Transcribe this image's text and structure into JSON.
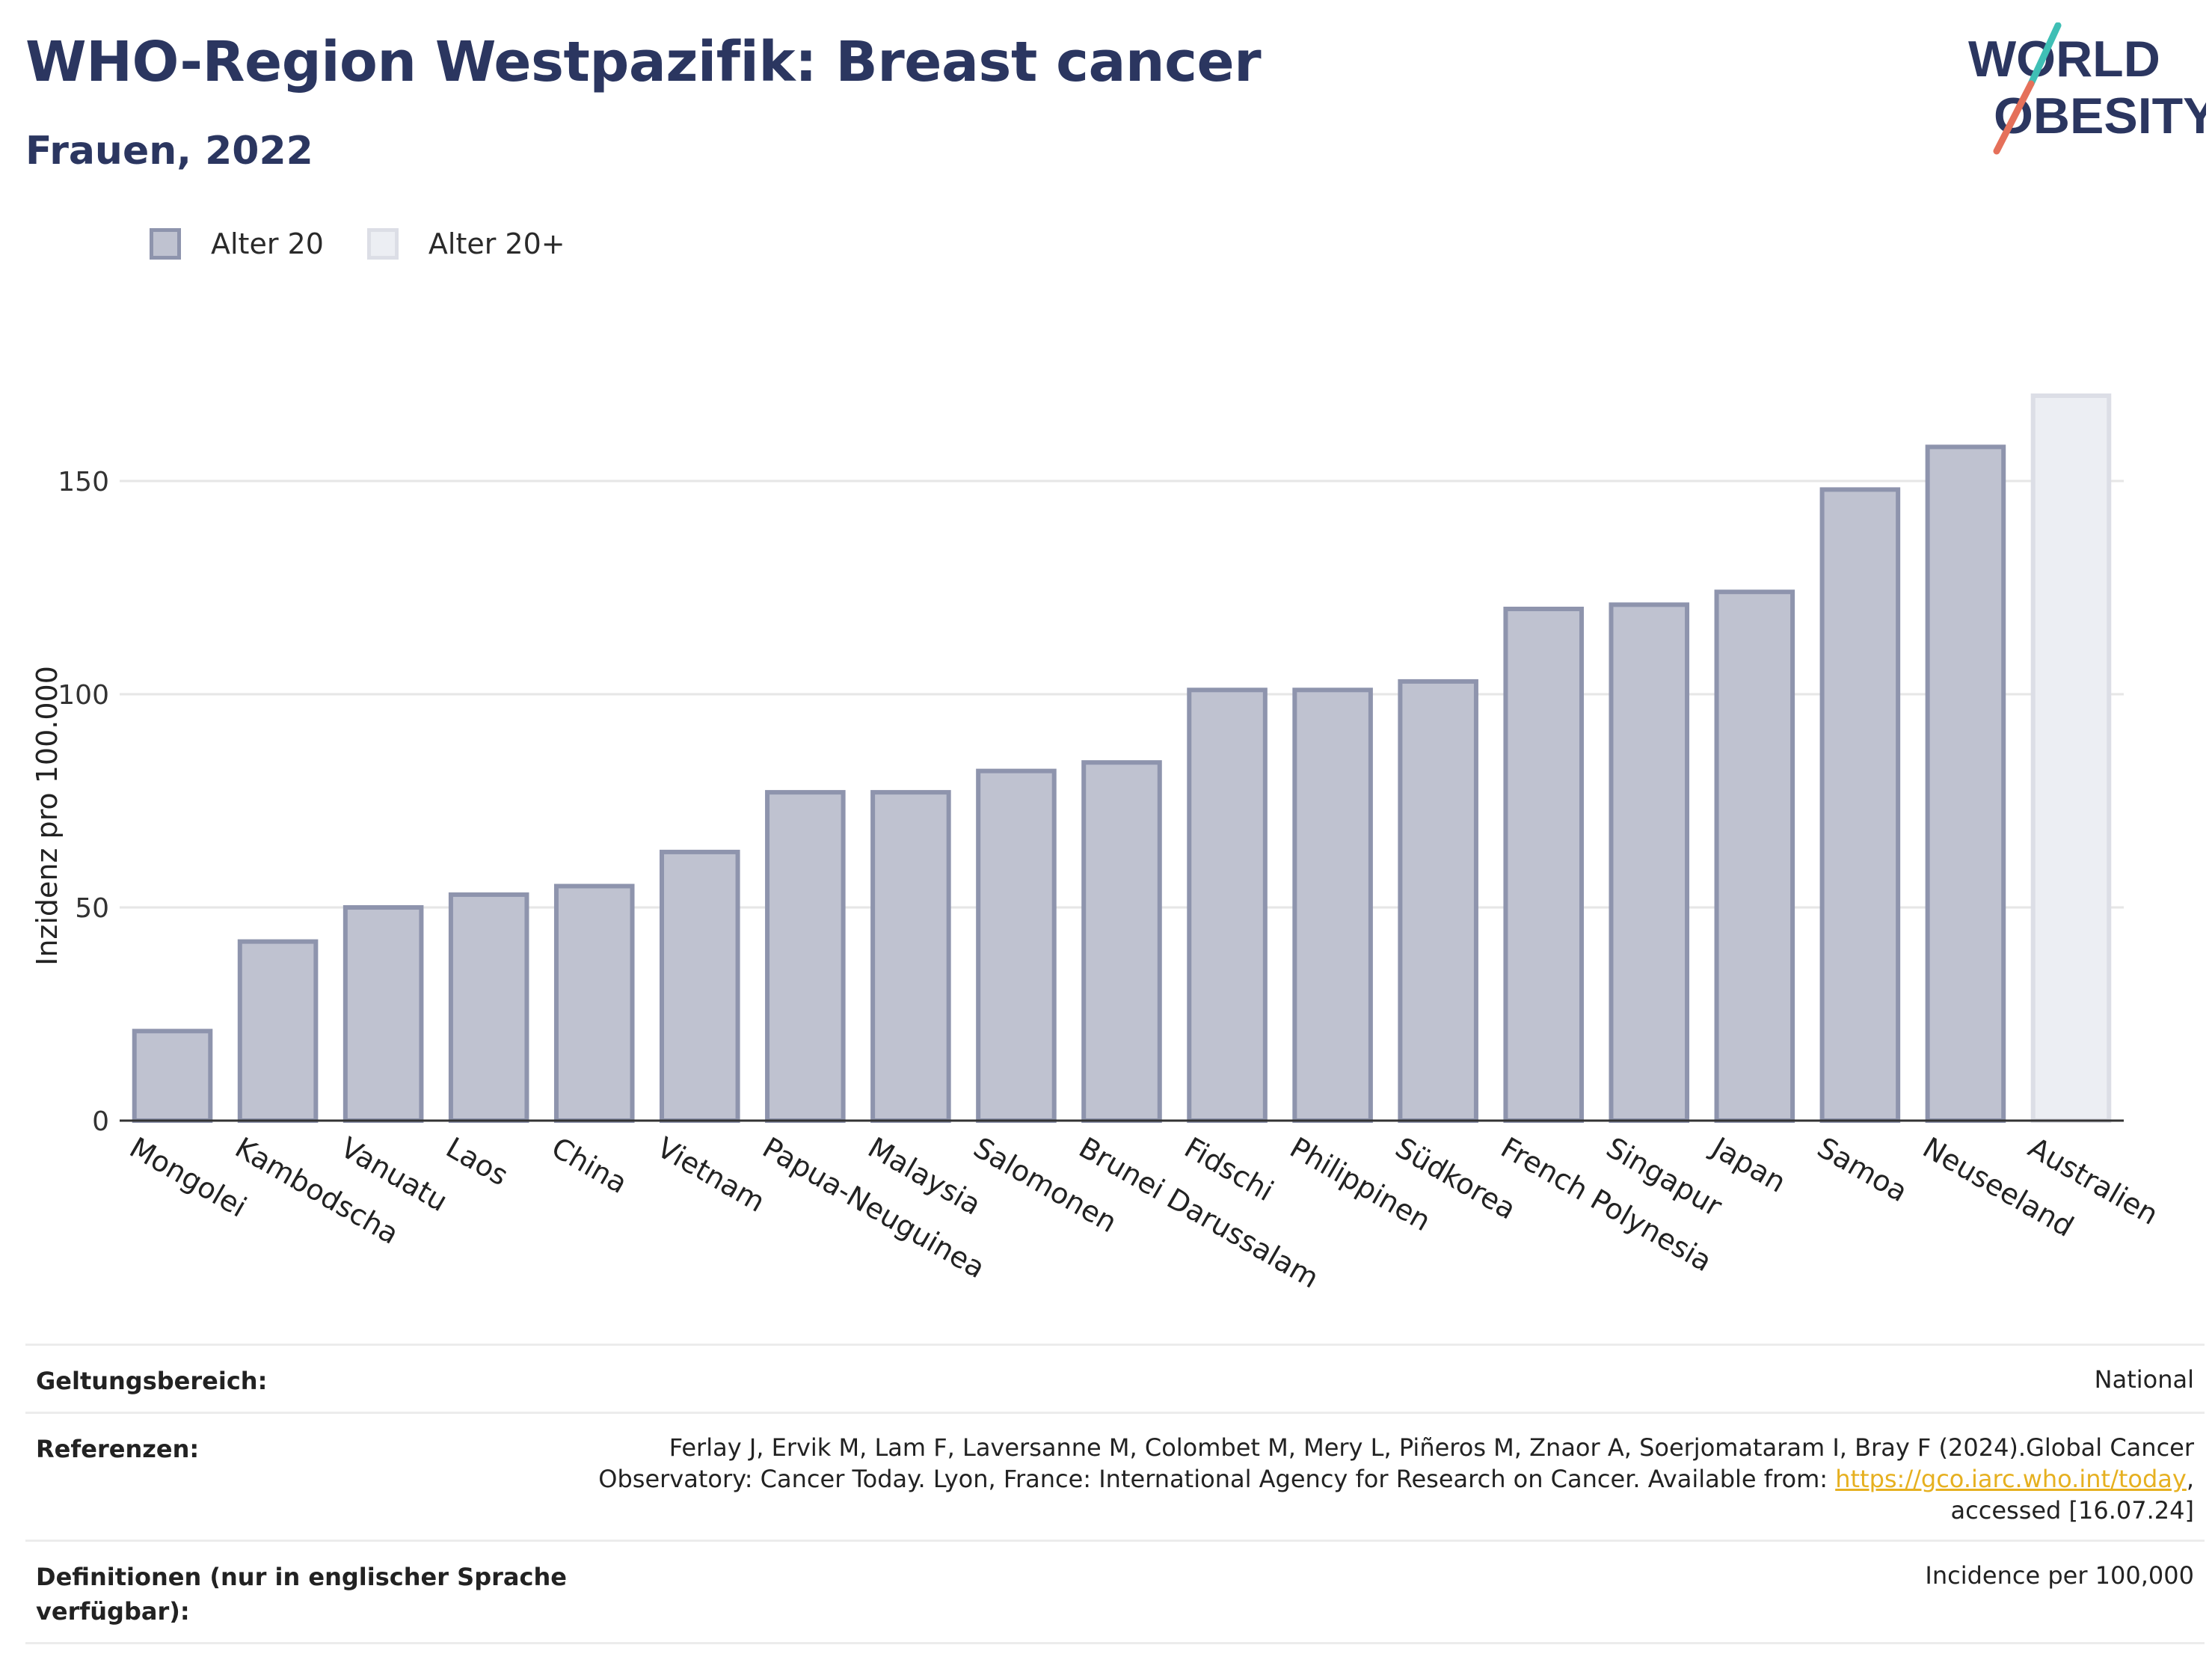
{
  "header": {
    "title": "WHO-Region Westpazifik: Breast cancer",
    "subtitle": "Frauen, 2022"
  },
  "logo": {
    "line1": "WORLD",
    "line2": "OBESITY",
    "colors": {
      "text": "#2b3660",
      "slash_teal": "#3fbfb5",
      "slash_coral": "#e5705a"
    }
  },
  "legend": [
    {
      "label": "Alter 20",
      "fill": "#bfc2d0",
      "stroke": "#8e94ad"
    },
    {
      "label": "Alter 20+",
      "fill": "#eceef3",
      "stroke": "#dcdee6"
    }
  ],
  "chart_data": {
    "type": "bar",
    "ylabel": "Inzidenz pro 100.000",
    "xlabel": "",
    "ylim": [
      0,
      175
    ],
    "yticks": [
      0,
      50,
      100,
      150
    ],
    "grid": true,
    "categories": [
      "Mongolei",
      "Kambodscha",
      "Vanuatu",
      "Laos",
      "China",
      "Vietnam",
      "Papua-Neuguinea",
      "Malaysia",
      "Salomonen",
      "Brunei Darussalam",
      "Fidschi",
      "Philippinen",
      "Südkorea",
      "French Polynesia",
      "Singapur",
      "Japan",
      "Samoa",
      "Neuseeland",
      "Australien"
    ],
    "values": [
      21,
      42,
      50,
      53,
      55,
      63,
      77,
      77,
      82,
      84,
      101,
      101,
      103,
      120,
      121,
      124,
      148,
      158,
      170
    ],
    "series_index": [
      0,
      0,
      0,
      0,
      0,
      0,
      0,
      0,
      0,
      0,
      0,
      0,
      0,
      0,
      0,
      0,
      0,
      0,
      1
    ],
    "colors": {
      "bar_fill": "#bfc2d0",
      "bar_stroke": "#8e94ad",
      "bar2_fill": "#eceef3",
      "bar2_stroke": "#dcdee6",
      "grid": "#e6e6e6",
      "axis": "#333333"
    }
  },
  "meta": {
    "scope_key": "Geltungsbereich:",
    "scope_val": "National",
    "ref_key": "Referenzen:",
    "ref_pre": "Ferlay J, Ervik M, Lam F, Laversanne M, Colombet M, Mery L, Piñeros M, Znaor A, Soerjomataram I, Bray F (2024).Global Cancer Observatory: Cancer Today. Lyon, France: International Agency for Research on Cancer. Available from: ",
    "ref_link": "https://gco.iarc.who.int/today",
    "ref_post": ", accessed [16.07.24]",
    "def_key": "Definitionen (nur in englischer Sprache verfügbar):",
    "def_val": "Incidence per 100,000"
  }
}
